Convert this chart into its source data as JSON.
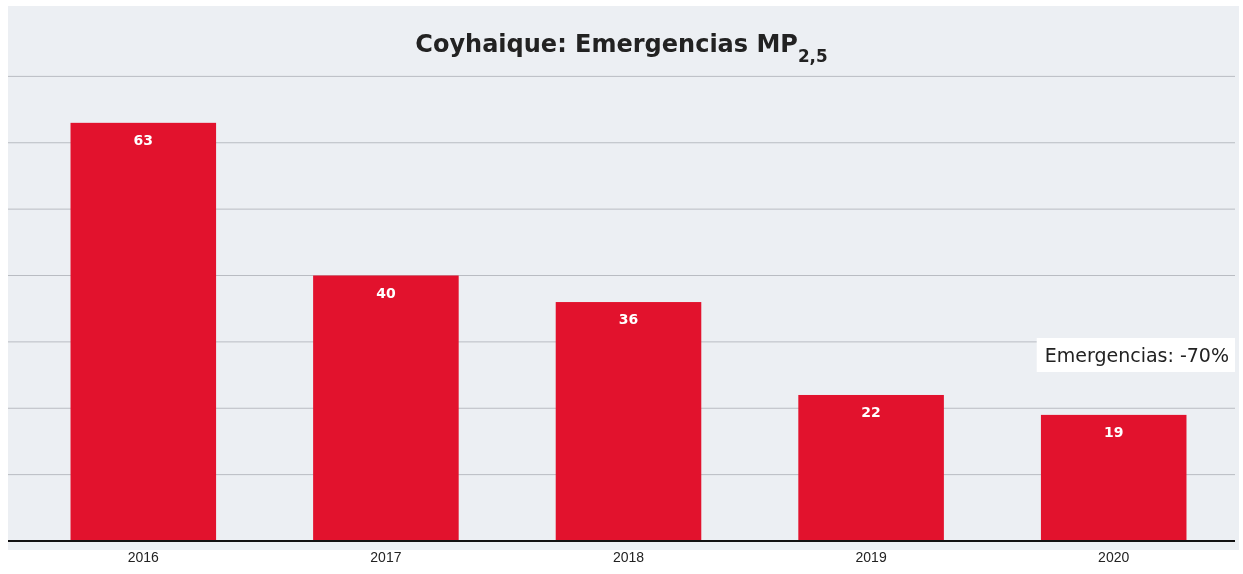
{
  "chart_data": {
    "type": "bar",
    "title": "Coyhaique: Emergencias MP$_{2,5}$",
    "categories": [
      "2016",
      "2017",
      "2018",
      "2019",
      "2020"
    ],
    "values": [
      63,
      40,
      36,
      22,
      19
    ],
    "color": "#e2122d",
    "data_labels": true,
    "ylim": [
      0,
      80
    ],
    "yticks": [
      {
        "value": 0,
        "label": null
      },
      {
        "value": 10,
        "label": null
      },
      {
        "value": 20,
        "label": null
      },
      {
        "value": 30,
        "label": null
      },
      {
        "value": 40,
        "label": null
      },
      {
        "value": 50,
        "label": null
      },
      {
        "value": 60,
        "label": null
      },
      {
        "value": 70,
        "label": null
      }
    ],
    "tick_labels": "x",
    "grid": "y",
    "annotations": [
      "Emergencias: -70%"
    ]
  }
}
